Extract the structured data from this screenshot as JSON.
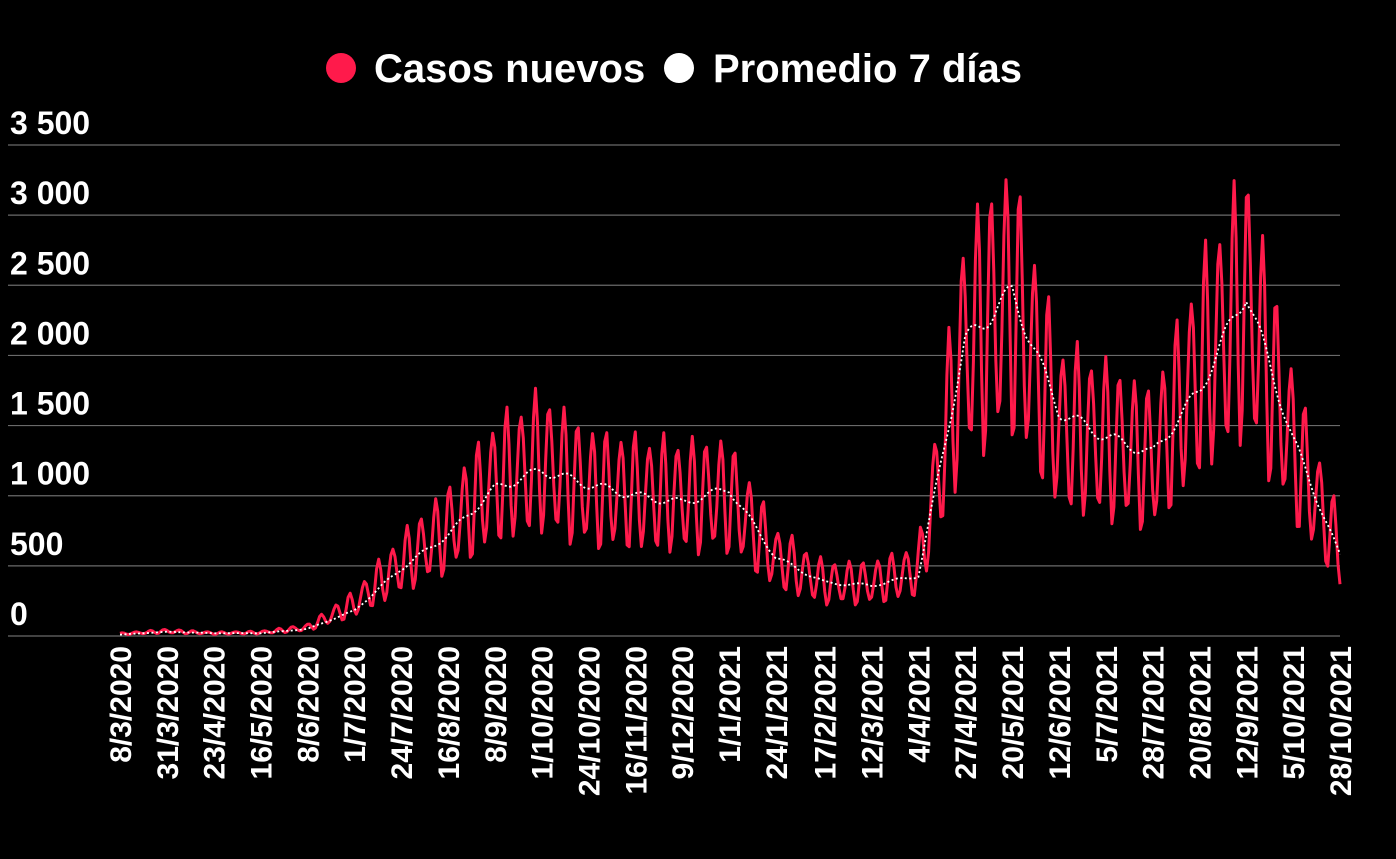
{
  "colors": {
    "background": "#000000",
    "casos": "#ff1a4b",
    "promedio": "#ffffff",
    "grid": "#6a6a6a"
  },
  "chart_data": {
    "type": "line",
    "title": "",
    "xlabel": "",
    "ylabel": "",
    "ylim": [
      0,
      3500
    ],
    "grid": true,
    "legend_position": "top-center",
    "yticks": [
      {
        "value": 0,
        "label": "0"
      },
      {
        "value": 500,
        "label": "500"
      },
      {
        "value": 1000,
        "label": "1 000"
      },
      {
        "value": 1500,
        "label": "1 500"
      },
      {
        "value": 2000,
        "label": "2 000"
      },
      {
        "value": 2500,
        "label": "2 500"
      },
      {
        "value": 3000,
        "label": "3 000"
      },
      {
        "value": 3500,
        "label": "3 500"
      }
    ],
    "x_tick_labels": [
      "8/3/2020",
      "31/3/2020",
      "23/4/2020",
      "16/5/2020",
      "8/6/2020",
      "1/7/2020",
      "24/7/2020",
      "16/8/2020",
      "8/9/2020",
      "1/10/2020",
      "24/10/2020",
      "16/11/2020",
      "9/12/2020",
      "1/1/2021",
      "24/1/2021",
      "17/2/2021",
      "12/3/2021",
      "4/4/2021",
      "27/4/2021",
      "20/5/2021",
      "12/6/2021",
      "5/7/2021",
      "28/7/2021",
      "20/8/2021",
      "12/9/2021",
      "5/10/2021",
      "28/10/2021"
    ],
    "series": [
      {
        "name": "Casos nuevos",
        "color": "#ff1a4b",
        "style": "daily",
        "x": [
          "2020-03-08",
          "2020-03-31",
          "2020-04-23",
          "2020-05-16",
          "2020-06-08",
          "2020-07-01",
          "2020-07-24",
          "2020-08-16",
          "2020-09-08",
          "2020-10-01",
          "2020-10-24",
          "2020-11-16",
          "2020-12-09",
          "2021-01-01",
          "2021-01-24",
          "2021-02-17",
          "2021-03-12",
          "2021-04-04",
          "2021-04-27",
          "2021-05-20",
          "2021-06-12",
          "2021-07-05",
          "2021-07-28",
          "2021-08-20",
          "2021-09-12",
          "2021-10-05",
          "2021-10-28"
        ],
        "values": [
          15,
          35,
          20,
          25,
          60,
          230,
          520,
          760,
          1100,
          1250,
          1050,
          1020,
          1000,
          1000,
          560,
          380,
          380,
          470,
          2100,
          2400,
          1500,
          1400,
          1250,
          1900,
          2400,
          1350,
          600
        ]
      },
      {
        "name": "Promedio 7 días",
        "color": "#ffffff",
        "style": "dotted",
        "x": [
          "2020-03-08",
          "2020-03-31",
          "2020-04-23",
          "2020-05-16",
          "2020-06-08",
          "2020-07-01",
          "2020-07-24",
          "2020-08-16",
          "2020-09-08",
          "2020-10-01",
          "2020-10-24",
          "2020-11-16",
          "2020-12-09",
          "2021-01-01",
          "2021-01-24",
          "2021-02-17",
          "2021-03-12",
          "2021-04-04",
          "2021-04-27",
          "2021-05-20",
          "2021-06-12",
          "2021-07-05",
          "2021-07-28",
          "2021-08-20",
          "2021-09-12",
          "2021-10-05",
          "2021-10-28"
        ],
        "values": [
          10,
          30,
          20,
          20,
          50,
          180,
          480,
          720,
          1050,
          1180,
          1080,
          1000,
          950,
          1050,
          560,
          380,
          360,
          430,
          2100,
          2450,
          1600,
          1420,
          1300,
          1750,
          2450,
          1400,
          570
        ]
      }
    ],
    "notable_points": {
      "peak_casos": {
        "x": "2021-05-10",
        "y": 3200
      },
      "second_peak_casos": {
        "x": "2021-09-10",
        "y": 3000
      }
    }
  }
}
